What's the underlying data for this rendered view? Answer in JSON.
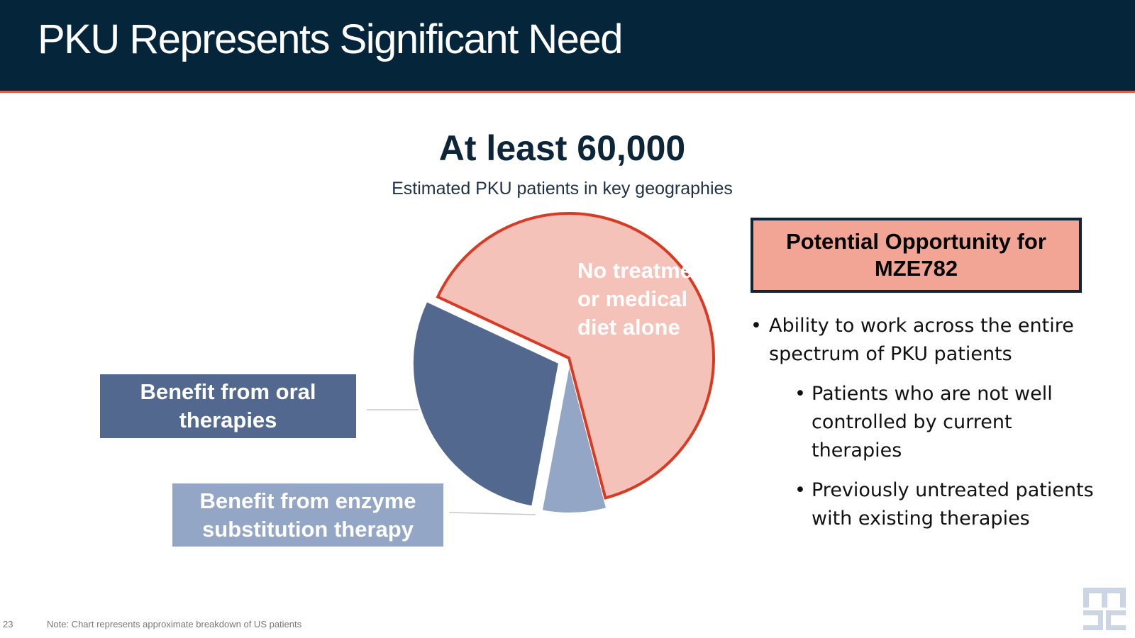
{
  "header": {
    "title": "PKU Represents Significant Need"
  },
  "headline": "At least 60,000",
  "subheadline": "Estimated PKU patients in key geographies",
  "chart_data": {
    "type": "pie",
    "title": "",
    "categories": [
      "No treatment or medical diet alone",
      "Benefit from enzyme substitution therapy",
      "Benefit from oral therapies"
    ],
    "values": [
      64,
      7,
      29
    ],
    "colors": [
      "#f5c2b9",
      "#94a6c6",
      "#52688f"
    ],
    "highlight_border": "#d83b24",
    "labels": {
      "no_treatment": "No treatment or medical diet alone",
      "oral": "Benefit from oral therapies",
      "enzyme": "Benefit from enzyme substitution therapy"
    }
  },
  "opportunity": {
    "title": "Potential Opportunity for MZE782",
    "bullets": [
      {
        "level": 1,
        "text": "Ability to work across the entire spectrum of PKU patients"
      },
      {
        "level": 2,
        "text": "Patients who are not well controlled by current therapies"
      },
      {
        "level": 2,
        "text": "Previously untreated patients with existing therapies"
      }
    ]
  },
  "footer": {
    "page_number": "23",
    "note": "Note: Chart represents approximate breakdown of US patients"
  },
  "colors": {
    "header_bg": "#04253a",
    "header_rule": "#e2604a",
    "accent_box": "#f3a595"
  },
  "logo_icon": "maze-logo-icon"
}
